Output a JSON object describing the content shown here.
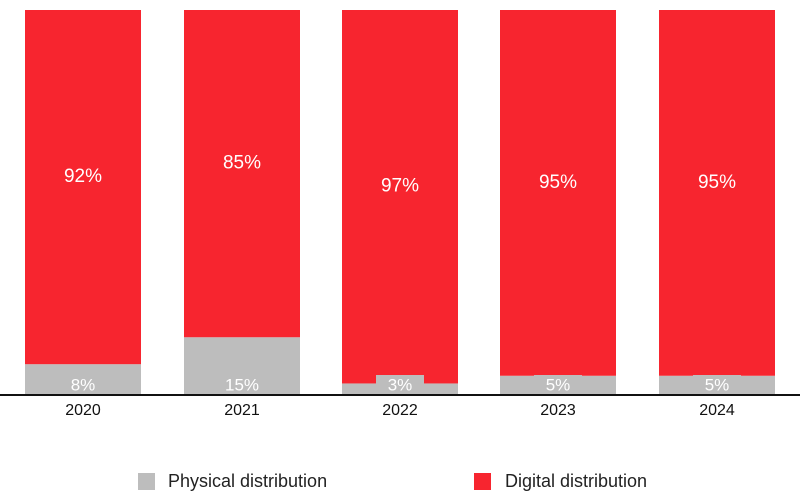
{
  "chart_data": {
    "type": "stacked-bar",
    "categories": [
      "2020",
      "2021",
      "2022",
      "2023",
      "2024"
    ],
    "series": [
      {
        "name": "Physical distribution",
        "color": "#bdbdbd",
        "values": [
          8,
          15,
          3,
          5,
          5
        ],
        "value_labels": [
          "8%",
          "15%",
          "3%",
          "5%",
          "5%"
        ]
      },
      {
        "name": "Digital distribution",
        "color": "#f7252f",
        "values": [
          92,
          85,
          97,
          95,
          95
        ],
        "value_labels": [
          "92%",
          "85%",
          "97%",
          "95%",
          "95%"
        ]
      }
    ]
  }
}
